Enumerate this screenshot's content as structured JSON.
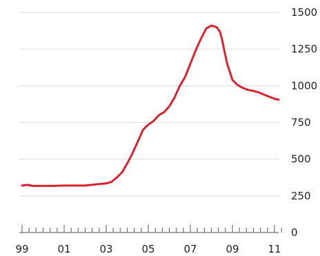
{
  "chart_data": {
    "type": "line",
    "title": "",
    "xlabel": "",
    "ylabel": "",
    "xlim": [
      1999,
      2011.4
    ],
    "ylim": [
      0,
      1500
    ],
    "grid": true,
    "y_axis_side": "right",
    "x_tick_values": [
      1999,
      2001,
      2003,
      2005,
      2007,
      2009,
      2011
    ],
    "x_tick_labels": [
      "99",
      "01",
      "03",
      "05",
      "07",
      "09",
      "11"
    ],
    "minor_x_ticks_per_year": 3,
    "y_ticks": [
      0,
      250,
      500,
      750,
      1000,
      1250,
      1500
    ],
    "y_tick_labels": [
      "0",
      "250",
      "500",
      "750",
      "1000",
      "1250",
      "1500"
    ],
    "series": [
      {
        "color": "#d9232e",
        "x": [
          1999.0,
          1999.25,
          1999.5,
          2000.0,
          2000.5,
          2001.0,
          2001.5,
          2002.0,
          2002.5,
          2003.0,
          2003.25,
          2003.5,
          2003.75,
          2004.0,
          2004.25,
          2004.5,
          2004.75,
          2005.0,
          2005.25,
          2005.5,
          2005.75,
          2006.0,
          2006.25,
          2006.5,
          2006.75,
          2007.0,
          2007.25,
          2007.5,
          2007.75,
          2008.0,
          2008.25,
          2008.4,
          2008.5,
          2008.6,
          2008.75,
          2009.0,
          2009.25,
          2009.5,
          2009.75,
          2010.0,
          2010.25,
          2010.5,
          2010.75,
          2011.0,
          2011.2
        ],
        "y": [
          320,
          325,
          318,
          318,
          318,
          320,
          320,
          320,
          328,
          335,
          345,
          375,
          410,
          470,
          540,
          620,
          700,
          735,
          760,
          800,
          820,
          860,
          920,
          1000,
          1060,
          1150,
          1240,
          1320,
          1390,
          1410,
          1400,
          1370,
          1320,
          1250,
          1150,
          1040,
          1005,
          985,
          972,
          965,
          955,
          940,
          925,
          912,
          905
        ]
      }
    ]
  }
}
